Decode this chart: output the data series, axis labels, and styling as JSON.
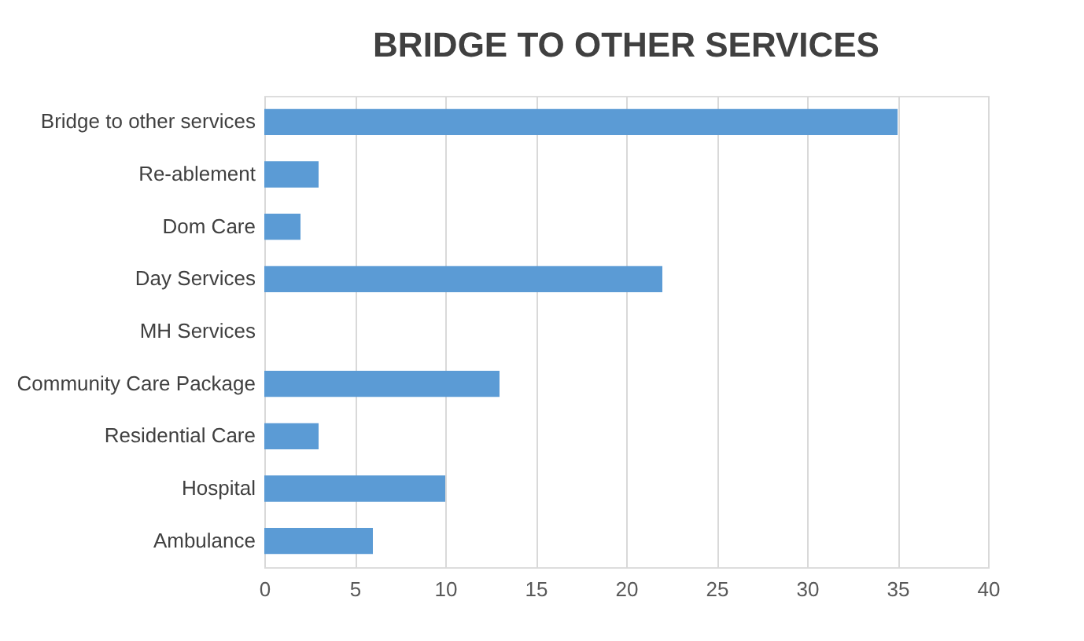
{
  "chart_data": {
    "type": "bar",
    "orientation": "horizontal",
    "title": "BRIDGE TO OTHER SERVICES",
    "categories": [
      "Bridge to other services",
      "Re-ablement",
      "Dom Care",
      "Day Services",
      "MH Services",
      "Community Care Package",
      "Residential Care",
      "Hospital",
      "Ambulance"
    ],
    "values": [
      35,
      3,
      2,
      22,
      0,
      13,
      3,
      10,
      6
    ],
    "color": "#5b9bd5",
    "xlim": [
      0,
      40
    ],
    "xticks": [
      0,
      5,
      10,
      15,
      20,
      25,
      30,
      35,
      40
    ],
    "grid": "x"
  }
}
